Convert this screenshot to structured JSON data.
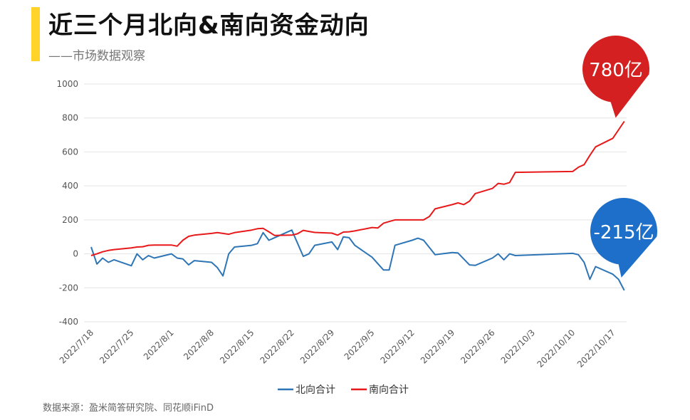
{
  "header": {
    "title": "近三个月北向&南向资金动向",
    "subtitle": "——市场数据观察",
    "source": "数据来源：盈米简答研究院、同花顺iFinD"
  },
  "colors": {
    "accent": "#FFD32A",
    "north": "#2E75B6",
    "south": "#E8191B",
    "callout_south": "#D42020",
    "callout_north": "#1E6FC9"
  },
  "callouts": {
    "south": "780亿",
    "north": "-215亿"
  },
  "chart_data": {
    "type": "line",
    "title": "",
    "xlabel": "",
    "ylabel": "",
    "ylim": [
      -400,
      1000
    ],
    "yticks": [
      1000,
      800,
      600,
      400,
      200,
      0,
      -200,
      -400
    ],
    "grid": true,
    "legend_position": "bottom",
    "categories": [
      "2022/7/18",
      "2022/7/25",
      "2022/8/1",
      "2022/8/8",
      "2022/8/15",
      "2022/8/22",
      "2022/8/29",
      "2022/9/5",
      "2022/9/12",
      "2022/9/19",
      "2022/9/26",
      "2022/10/3",
      "2022/10/10",
      "2022/10/17"
    ],
    "series": [
      {
        "name": "北向合计",
        "color": "#2E75B6",
        "points": [
          [
            0,
            40
          ],
          [
            1,
            -60
          ],
          [
            2,
            -25
          ],
          [
            3,
            -50
          ],
          [
            4,
            -35
          ],
          [
            7,
            -70
          ],
          [
            8,
            0
          ],
          [
            9,
            -35
          ],
          [
            10,
            -10
          ],
          [
            11,
            -25
          ],
          [
            14,
            0
          ],
          [
            15,
            -25
          ],
          [
            16,
            -30
          ],
          [
            17,
            -65
          ],
          [
            18,
            -40
          ],
          [
            21,
            -50
          ],
          [
            22,
            -80
          ],
          [
            23,
            -130
          ],
          [
            24,
            0
          ],
          [
            25,
            40
          ],
          [
            28,
            50
          ],
          [
            29,
            60
          ],
          [
            30,
            125
          ],
          [
            31,
            80
          ],
          [
            35,
            140
          ],
          [
            37,
            -15
          ],
          [
            38,
            0
          ],
          [
            39,
            50
          ],
          [
            42,
            70
          ],
          [
            43,
            25
          ],
          [
            44,
            100
          ],
          [
            45,
            95
          ],
          [
            46,
            50
          ],
          [
            49,
            -20
          ],
          [
            51,
            -95
          ],
          [
            52,
            -95
          ],
          [
            53,
            50
          ],
          [
            56,
            80
          ],
          [
            57,
            92
          ],
          [
            58,
            80
          ],
          [
            60,
            -5
          ],
          [
            63,
            8
          ],
          [
            64,
            5
          ],
          [
            66,
            -65
          ],
          [
            67,
            -68
          ],
          [
            70,
            -25
          ],
          [
            71,
            0
          ],
          [
            72,
            -35
          ],
          [
            73,
            0
          ],
          [
            74,
            -10
          ],
          [
            84,
            3
          ],
          [
            85,
            -5
          ],
          [
            86,
            -50
          ],
          [
            87,
            -150
          ],
          [
            88,
            -75
          ],
          [
            91,
            -120
          ],
          [
            92,
            -150
          ],
          [
            93,
            -215
          ]
        ]
      },
      {
        "name": "南向合计",
        "color": "#E8191B",
        "points": [
          [
            0,
            -10
          ],
          [
            1,
            0
          ],
          [
            2,
            12
          ],
          [
            3,
            20
          ],
          [
            4,
            25
          ],
          [
            7,
            35
          ],
          [
            8,
            40
          ],
          [
            9,
            42
          ],
          [
            10,
            50
          ],
          [
            11,
            52
          ],
          [
            14,
            52
          ],
          [
            15,
            45
          ],
          [
            16,
            80
          ],
          [
            17,
            103
          ],
          [
            18,
            110
          ],
          [
            21,
            120
          ],
          [
            22,
            125
          ],
          [
            23,
            120
          ],
          [
            24,
            115
          ],
          [
            25,
            125
          ],
          [
            28,
            140
          ],
          [
            29,
            148
          ],
          [
            30,
            150
          ],
          [
            31,
            130
          ],
          [
            32,
            108
          ],
          [
            35,
            110
          ],
          [
            36,
            118
          ],
          [
            37,
            138
          ],
          [
            38,
            132
          ],
          [
            39,
            126
          ],
          [
            42,
            122
          ],
          [
            43,
            110
          ],
          [
            44,
            128
          ],
          [
            45,
            130
          ],
          [
            46,
            135
          ],
          [
            49,
            155
          ],
          [
            50,
            152
          ],
          [
            51,
            180
          ],
          [
            52,
            190
          ],
          [
            53,
            200
          ],
          [
            56,
            200
          ],
          [
            58,
            200
          ],
          [
            59,
            220
          ],
          [
            60,
            265
          ],
          [
            63,
            290
          ],
          [
            64,
            300
          ],
          [
            65,
            290
          ],
          [
            66,
            310
          ],
          [
            67,
            355
          ],
          [
            70,
            385
          ],
          [
            71,
            415
          ],
          [
            72,
            410
          ],
          [
            73,
            420
          ],
          [
            74,
            480
          ],
          [
            84,
            485
          ],
          [
            85,
            510
          ],
          [
            86,
            525
          ],
          [
            87,
            580
          ],
          [
            88,
            630
          ],
          [
            91,
            680
          ],
          [
            93,
            780
          ]
        ]
      }
    ]
  }
}
